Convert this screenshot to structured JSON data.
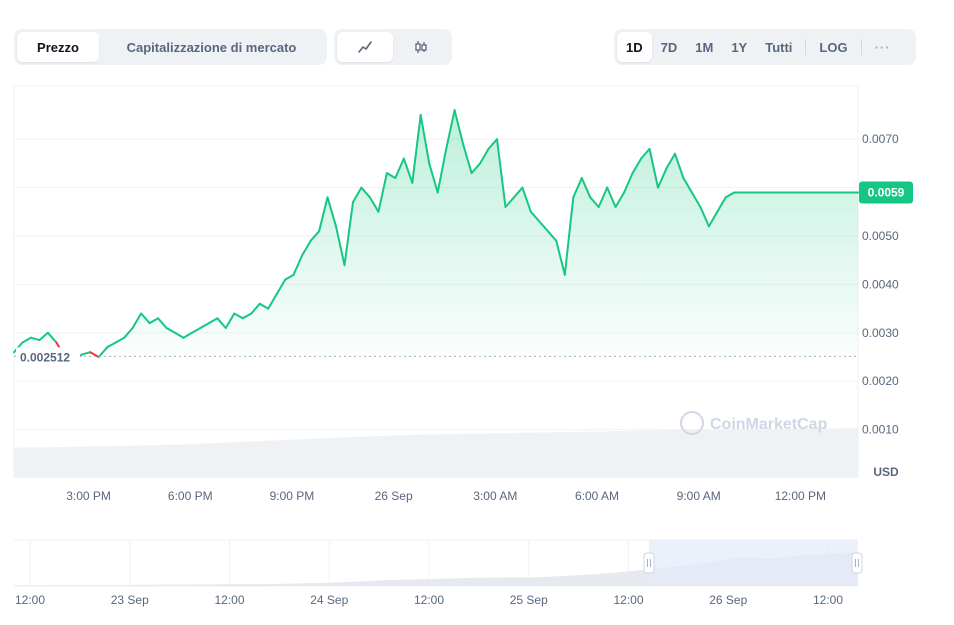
{
  "toolbar": {
    "metric_tabs": [
      "Prezzo",
      "Capitalizzazione di mercato"
    ],
    "active_metric": "Prezzo",
    "chart_type_icons": [
      "line-chart-icon",
      "candlestick-icon"
    ],
    "active_chart_type": "line-chart-icon",
    "ranges": [
      "1D",
      "7D",
      "1M",
      "1Y",
      "Tutti"
    ],
    "active_range": "1D",
    "log_label": "LOG",
    "more_label": "···"
  },
  "watermark": "CoinMarketCap",
  "colors": {
    "up": "#16c784",
    "down": "#ea3943",
    "grid": "#eff2f5",
    "text": "#58667e",
    "volume": "#eff2f5",
    "nav_selection": "#e4e9f9"
  },
  "chart_data": [
    {
      "type": "line",
      "currency_label": "USD",
      "reference_value": 0.002512,
      "reference_label": "0.002512",
      "current_value": 0.0059,
      "current_label": "0.0059",
      "ylim": [
        0.0,
        0.0081
      ],
      "y_ticks": [
        0.001,
        0.002,
        0.003,
        0.004,
        0.005,
        0.007
      ],
      "y_tick_labels": [
        "0.0010",
        "0.0020",
        "0.0030",
        "0.0040",
        "0.0050",
        "0.0070"
      ],
      "x_tick_labels": [
        "3:00 PM",
        "6:00 PM",
        "9:00 PM",
        "26 Sep",
        "3:00 AM",
        "6:00 AM",
        "9:00 AM",
        "12:00 PM"
      ],
      "x_ticks_hours": [
        2.2,
        5.2,
        8.2,
        11.2,
        14.2,
        17.2,
        20.2,
        23.2
      ],
      "xlim_hours": [
        0,
        24.9
      ],
      "x": [
        0,
        0.25,
        0.5,
        0.75,
        1,
        1.25,
        1.5,
        1.75,
        2,
        2.25,
        2.5,
        2.75,
        3,
        3.25,
        3.5,
        3.75,
        4,
        4.25,
        4.5,
        4.75,
        5,
        5.25,
        5.5,
        5.75,
        6,
        6.25,
        6.5,
        6.75,
        7,
        7.25,
        7.5,
        7.75,
        8,
        8.25,
        8.5,
        8.75,
        9,
        9.25,
        9.5,
        9.75,
        10,
        10.25,
        10.5,
        10.75,
        11,
        11.25,
        11.5,
        11.75,
        12,
        12.25,
        12.5,
        12.75,
        13,
        13.25,
        13.5,
        13.75,
        14,
        14.25,
        14.5,
        14.75,
        15,
        15.25,
        15.5,
        15.75,
        16,
        16.25,
        16.5,
        16.75,
        17,
        17.25,
        17.5,
        17.75,
        18,
        18.25,
        18.5,
        18.75,
        19,
        19.25,
        19.5,
        19.75,
        20,
        20.25,
        20.5,
        20.75,
        21,
        21.25,
        21.5,
        21.75,
        22,
        22.25,
        22.5,
        22.75,
        23,
        23.25,
        23.5,
        23.75,
        24,
        24.25,
        24.5,
        24.75,
        24.9
      ],
      "y": [
        0.0026,
        0.0028,
        0.0029,
        0.00285,
        0.003,
        0.0028,
        0.0025,
        0.0024,
        0.00255,
        0.0026,
        0.0025,
        0.0027,
        0.0028,
        0.0029,
        0.0031,
        0.0034,
        0.0032,
        0.0033,
        0.0031,
        0.003,
        0.0029,
        0.003,
        0.0031,
        0.0032,
        0.0033,
        0.0031,
        0.0034,
        0.0033,
        0.0034,
        0.0036,
        0.0035,
        0.0038,
        0.0041,
        0.0042,
        0.0046,
        0.0049,
        0.0051,
        0.0058,
        0.0052,
        0.0044,
        0.0057,
        0.006,
        0.0058,
        0.0055,
        0.0063,
        0.0062,
        0.0066,
        0.0061,
        0.0075,
        0.0065,
        0.0059,
        0.0068,
        0.0076,
        0.0069,
        0.0063,
        0.0065,
        0.0068,
        0.007,
        0.0056,
        0.0058,
        0.006,
        0.0055,
        0.0053,
        0.0051,
        0.0049,
        0.0042,
        0.0058,
        0.0062,
        0.0058,
        0.0056,
        0.006,
        0.0056,
        0.0059,
        0.0063,
        0.0066,
        0.0068,
        0.006,
        0.0064,
        0.0067,
        0.0062,
        0.0059,
        0.0056,
        0.0052,
        0.0055,
        0.0058,
        0.0059,
        0.0059,
        0.0059,
        0.0059,
        0.0059,
        0.0059,
        0.0059,
        0.0059,
        0.0059,
        0.0059,
        0.0059,
        0.0059,
        0.0059,
        0.0059,
        0.0059,
        0.0059
      ],
      "volume_relative": [
        0.35,
        0.36,
        0.38,
        0.4,
        0.42,
        0.45,
        0.5,
        0.55,
        0.6,
        0.65,
        0.7,
        0.74,
        0.78,
        0.8,
        0.82,
        0.84,
        0.86,
        0.88,
        0.9,
        0.92,
        0.94,
        0.95,
        0.96,
        0.97,
        0.98,
        1.0
      ]
    },
    {
      "type": "area",
      "role": "navigator",
      "x_tick_labels": [
        "12:00",
        "23 Sep",
        "12:00",
        "24 Sep",
        "12:00",
        "25 Sep",
        "12:00",
        "26 Sep",
        "12:00"
      ],
      "selected_range_fraction": [
        0.75,
        1.0
      ],
      "values_relative": [
        0.02,
        0.02,
        0.03,
        0.03,
        0.03,
        0.04,
        0.04,
        0.05,
        0.05,
        0.06,
        0.08,
        0.1,
        0.14,
        0.18,
        0.2,
        0.22,
        0.24,
        0.25,
        0.26,
        0.3,
        0.35,
        0.42,
        0.5,
        0.6,
        0.72,
        0.85,
        0.8,
        0.9,
        0.95,
        1.0
      ]
    }
  ]
}
